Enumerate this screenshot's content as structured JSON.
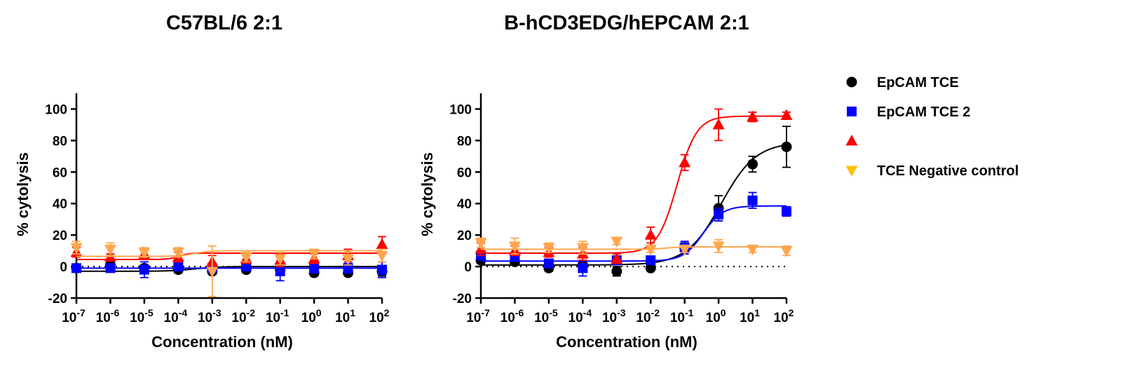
{
  "chart_data": [
    {
      "type": "scatter",
      "title": "C57BL/6 2:1",
      "xlabel": "Concentration (nM)",
      "ylabel": "% cytolysis",
      "xscale": "log",
      "xlim": [
        1e-07,
        100
      ],
      "ylim": [
        -20,
        110
      ],
      "xticks": [
        {
          "base": "10",
          "exp": "-7"
        },
        {
          "base": "10",
          "exp": "-6"
        },
        {
          "base": "10",
          "exp": "-5"
        },
        {
          "base": "10",
          "exp": "-4"
        },
        {
          "base": "10",
          "exp": "-3"
        },
        {
          "base": "10",
          "exp": "-2"
        },
        {
          "base": "10",
          "exp": "-1"
        },
        {
          "base": "10",
          "exp": "0"
        },
        {
          "base": "10",
          "exp": "1"
        },
        {
          "base": "10",
          "exp": "2"
        }
      ],
      "yticks": [
        "-20",
        "0",
        "20",
        "40",
        "60",
        "80",
        "100"
      ],
      "reference_line_y": 0,
      "x": [
        1e-07,
        1e-06,
        1e-05,
        0.0001,
        0.001,
        0.01,
        0.1,
        1,
        10,
        100
      ],
      "series": [
        {
          "name": "EpCAM TCE",
          "marker": "circle",
          "color": "#000000",
          "y": [
            -1,
            1,
            -1,
            -2,
            -3,
            -2,
            -2,
            -4,
            -4,
            -3
          ],
          "err": [
            2,
            2,
            2,
            2,
            2,
            2,
            3,
            2,
            2,
            3
          ],
          "fit": {
            "bottom": -3,
            "top": 0,
            "ec50": 0.0003,
            "hill": 1.2
          }
        },
        {
          "name": "EpCAM TCE 2",
          "marker": "square",
          "color": "#0000ff",
          "y": [
            -1,
            -1,
            -2,
            0,
            -1,
            0,
            -3,
            -1,
            -1,
            -2
          ],
          "err": [
            2,
            2,
            5,
            2,
            2,
            2,
            6,
            3,
            3,
            5
          ],
          "fit": {
            "bottom": -1,
            "top": -1,
            "ec50": 0.001,
            "hill": 1
          }
        },
        {
          "name": "",
          "marker": "triangle-up",
          "color": "#ff0000",
          "y": [
            9,
            6,
            8,
            6,
            3,
            5,
            4,
            5,
            7,
            14
          ],
          "err": [
            3,
            2,
            3,
            3,
            4,
            3,
            4,
            3,
            4,
            5
          ],
          "fit": {
            "bottom": 4.5,
            "top": 8.5,
            "ec50": 0.0001,
            "hill": 3
          }
        },
        {
          "name": "TCE Negative control",
          "marker": "triangle-down",
          "color": "#ffa64d",
          "y": [
            12,
            11,
            9,
            9,
            -3,
            6,
            5,
            8,
            5,
            7
          ],
          "err": [
            4,
            4,
            3,
            3,
            16,
            3,
            4,
            3,
            4,
            4
          ],
          "fit": {
            "bottom": 6.5,
            "top": 10,
            "ec50": 0.0003,
            "hill": 2
          }
        }
      ]
    },
    {
      "type": "scatter",
      "title": "B-hCD3EDG/hEPCAM 2:1",
      "xlabel": "Concentration (nM)",
      "ylabel": "% cytolysis",
      "xscale": "log",
      "xlim": [
        1e-07,
        100
      ],
      "ylim": [
        -20,
        110
      ],
      "xticks": [
        {
          "base": "10",
          "exp": "-7"
        },
        {
          "base": "10",
          "exp": "-6"
        },
        {
          "base": "10",
          "exp": "-5"
        },
        {
          "base": "10",
          "exp": "-4"
        },
        {
          "base": "10",
          "exp": "-3"
        },
        {
          "base": "10",
          "exp": "-2"
        },
        {
          "base": "10",
          "exp": "-1"
        },
        {
          "base": "10",
          "exp": "0"
        },
        {
          "base": "10",
          "exp": "1"
        },
        {
          "base": "10",
          "exp": "2"
        }
      ],
      "yticks": [
        "-20",
        "0",
        "20",
        "40",
        "60",
        "80",
        "100"
      ],
      "reference_line_y": 0,
      "x": [
        1e-07,
        1e-06,
        1e-05,
        0.0001,
        0.001,
        0.01,
        0.1,
        1,
        10,
        100
      ],
      "series": [
        {
          "name": "EpCAM TCE",
          "marker": "circle",
          "color": "#000000",
          "y": [
            4,
            3,
            -1,
            1,
            -3,
            -1,
            12,
            37,
            65,
            76
          ],
          "err": [
            2,
            2,
            2,
            2,
            3,
            1,
            3,
            8,
            5,
            13
          ],
          "fit": {
            "bottom": 1,
            "top": 79,
            "ec50": 1.2,
            "hill": 0.85
          }
        },
        {
          "name": "EpCAM TCE 2",
          "marker": "square",
          "color": "#0000ff",
          "y": [
            7,
            6,
            2,
            -1,
            4,
            4,
            12,
            33,
            42,
            35
          ],
          "err": [
            2,
            2,
            2,
            5,
            2,
            2,
            4,
            4,
            5,
            3
          ],
          "fit": {
            "bottom": 3.5,
            "top": 38.5,
            "ec50": 0.35,
            "hill": 1.5
          }
        },
        {
          "name": "",
          "marker": "triangle-up",
          "color": "#ff0000",
          "y": [
            11,
            10,
            9,
            8,
            5,
            20,
            66,
            90,
            95,
            96
          ],
          "err": [
            4,
            3,
            3,
            4,
            3,
            5,
            5,
            10,
            3,
            2
          ],
          "fit": {
            "bottom": 8.5,
            "top": 95.5,
            "ec50": 0.06,
            "hill": 1.5
          }
        },
        {
          "name": "TCE Negative control",
          "marker": "triangle-down",
          "color": "#ffa64d",
          "y": [
            15,
            13,
            12,
            12,
            16,
            11,
            11,
            13,
            11,
            10
          ],
          "err": [
            3,
            5,
            3,
            4,
            2,
            2,
            2,
            4,
            2,
            3
          ],
          "fit": {
            "bottom": 11,
            "top": 12.5,
            "ec50": 0.03,
            "hill": 2
          }
        }
      ]
    }
  ],
  "legend": {
    "placement": "right",
    "items": [
      {
        "label": "EpCAM TCE",
        "marker": "circle",
        "color": "#000000"
      },
      {
        "label": "EpCAM TCE 2",
        "marker": "square",
        "color": "#0000ff"
      },
      {
        "label": "",
        "marker": "triangle-up",
        "color": "#ff0000"
      },
      {
        "label": "TCE Negative control",
        "marker": "triangle-down",
        "color": "#ffc000"
      }
    ]
  }
}
